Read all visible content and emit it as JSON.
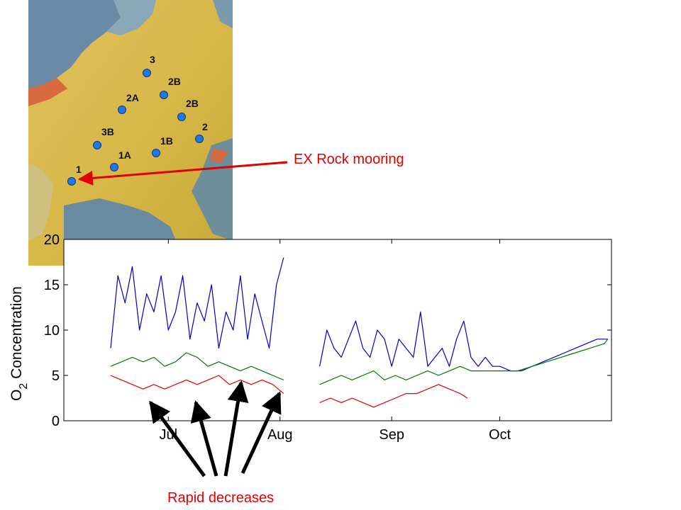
{
  "colors": {
    "red": "#e00000",
    "blue": "#0000cc",
    "green": "#007a00",
    "station": "#1e78e6",
    "black": "#000000"
  },
  "map": {
    "stations": [
      {
        "label": "3"
      },
      {
        "label": "2B"
      },
      {
        "label": "2A"
      },
      {
        "label": "2B"
      },
      {
        "label": "2"
      },
      {
        "label": "3B"
      },
      {
        "label": "1B"
      },
      {
        "label": "1A"
      },
      {
        "label": "1"
      }
    ]
  },
  "annotations": {
    "mooring_label": "EX Rock mooring",
    "decreases_label": "Rapid decreases"
  },
  "chart_data": {
    "type": "line",
    "title": "",
    "ylabel_main": "O",
    "ylabel_sub": "2",
    "ylabel_rest": " Concentration",
    "xlabel": "",
    "ylim": [
      0,
      20
    ],
    "yticks": [
      "0",
      "5",
      "10",
      "15",
      "20"
    ],
    "xticks": [
      "Jul",
      "Aug",
      "Sep",
      "Oct"
    ],
    "xlim": [
      "Jun 2",
      "Nov 1"
    ],
    "grid": false,
    "series": [
      {
        "color": "blue",
        "segments": [
          {
            "x": [
              "Jun 15",
              "Jun 17",
              "Jun 19",
              "Jun 21",
              "Jun 23",
              "Jun 25",
              "Jun 27",
              "Jun 29",
              "Jul 1",
              "Jul 3",
              "Jul 5",
              "Jul 7",
              "Jul 9",
              "Jul 11",
              "Jul 13",
              "Jul 15",
              "Jul 17",
              "Jul 19",
              "Jul 21",
              "Jul 23",
              "Jul 25",
              "Jul 27",
              "Jul 29",
              "Jul 31",
              "Aug 2"
            ],
            "y": [
              8,
              16,
              13,
              17,
              10,
              14,
              12,
              16,
              10,
              12,
              16,
              9,
              13,
              11,
              15,
              8,
              12,
              10,
              16,
              9,
              14,
              11,
              8,
              15,
              18
            ]
          },
          {
            "x": [
              "Aug 12",
              "Aug 14",
              "Aug 16",
              "Aug 18",
              "Aug 20",
              "Aug 22",
              "Aug 24",
              "Aug 26",
              "Aug 28",
              "Aug 30",
              "Sep 1",
              "Sep 3",
              "Sep 5",
              "Sep 7",
              "Sep 9",
              "Sep 11",
              "Sep 13",
              "Sep 15",
              "Sep 17",
              "Sep 19",
              "Sep 21",
              "Sep 23",
              "Sep 25",
              "Sep 27",
              "Sep 29",
              "Oct 1",
              "Oct 4",
              "Oct 7",
              "Oct 10",
              "Oct 13",
              "Oct 16",
              "Oct 19",
              "Oct 22",
              "Oct 25",
              "Oct 28",
              "Oct 31"
            ],
            "y": [
              6,
              10,
              8,
              7,
              9,
              11,
              8,
              7,
              10,
              9,
              6,
              9,
              8,
              7,
              12,
              6,
              7,
              8,
              6,
              9,
              11,
              7,
              6,
              7,
              6,
              6,
              5.5,
              5.5,
              6,
              6.5,
              7,
              7.5,
              8,
              8.5,
              9,
              9
            ]
          }
        ]
      },
      {
        "color": "green",
        "segments": [
          {
            "x": [
              "Jun 15",
              "Jun 18",
              "Jun 21",
              "Jun 24",
              "Jun 27",
              "Jun 30",
              "Jul 3",
              "Jul 6",
              "Jul 9",
              "Jul 12",
              "Jul 15",
              "Jul 18",
              "Jul 21",
              "Jul 24",
              "Jul 27",
              "Jul 30",
              "Aug 2"
            ],
            "y": [
              6,
              6.5,
              7,
              6.5,
              7,
              6,
              6.5,
              7.5,
              7,
              6,
              6.5,
              6,
              5.5,
              6,
              5.5,
              5,
              4.5
            ]
          },
          {
            "x": [
              "Aug 12",
              "Aug 15",
              "Aug 18",
              "Aug 21",
              "Aug 24",
              "Aug 27",
              "Aug 30",
              "Sep 2",
              "Sep 5",
              "Sep 8",
              "Sep 11",
              "Sep 14",
              "Sep 17",
              "Sep 20",
              "Sep 23",
              "Sep 26",
              "Sep 29",
              "Oct 2",
              "Oct 6",
              "Oct 10",
              "Oct 14",
              "Oct 18",
              "Oct 22",
              "Oct 26",
              "Oct 30",
              "Oct 31"
            ],
            "y": [
              4,
              4.5,
              5,
              4.5,
              5,
              5.5,
              4.5,
              5,
              4.5,
              5,
              5.5,
              5,
              5.5,
              6,
              5.5,
              5.5,
              5.5,
              5.5,
              5.5,
              6,
              6.5,
              7,
              7.5,
              8,
              8.5,
              9
            ]
          }
        ]
      },
      {
        "color": "red",
        "segments": [
          {
            "x": [
              "Jun 15",
              "Jun 18",
              "Jun 21",
              "Jun 24",
              "Jun 27",
              "Jun 30",
              "Jul 3",
              "Jul 6",
              "Jul 9",
              "Jul 12",
              "Jul 15",
              "Jul 18",
              "Jul 21",
              "Jul 24",
              "Jul 27",
              "Jul 30",
              "Aug 2"
            ],
            "y": [
              5,
              4.5,
              4,
              3.5,
              4,
              3.5,
              4,
              4.5,
              4,
              4.5,
              5,
              4,
              4.5,
              4,
              4.5,
              4,
              3
            ]
          },
          {
            "x": [
              "Aug 12",
              "Aug 15",
              "Aug 18",
              "Aug 21",
              "Aug 24",
              "Aug 27",
              "Aug 30",
              "Sep 2",
              "Sep 5",
              "Sep 8",
              "Sep 11",
              "Sep 14",
              "Sep 17",
              "Sep 20",
              "Sep 22"
            ],
            "y": [
              2,
              2.5,
              2,
              2.5,
              2,
              1.5,
              2,
              2.5,
              3,
              3,
              3.5,
              4,
              3.5,
              3,
              2.5
            ]
          }
        ]
      }
    ]
  }
}
